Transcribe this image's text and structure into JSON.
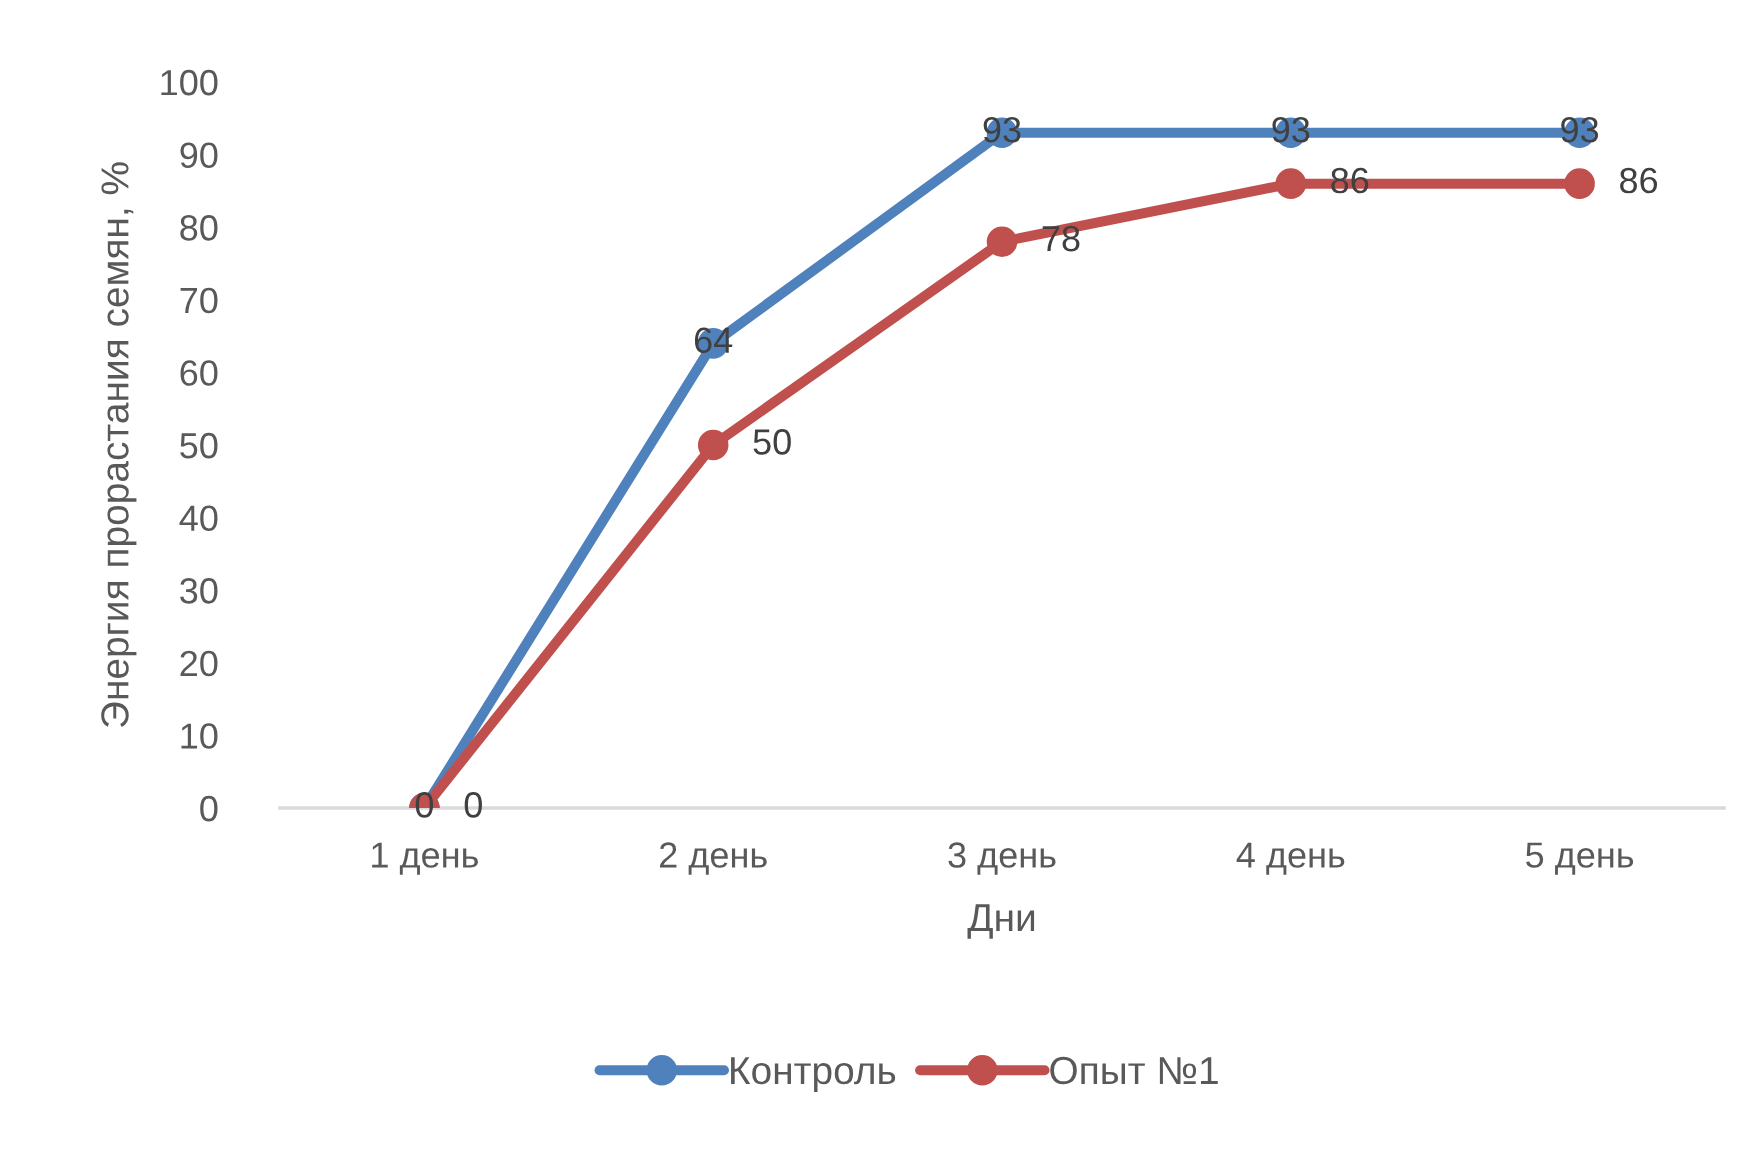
{
  "chart_data": {
    "type": "line",
    "xlabel": "Дни",
    "ylabel": "Энергия прорастания семян, %",
    "categories": [
      "1 день",
      "2 день",
      "3 день",
      "4 день",
      "5 день"
    ],
    "series": [
      {
        "name": "Контроль",
        "color": "#4f81bd",
        "values": [
          0,
          64,
          93,
          93,
          93
        ]
      },
      {
        "name": "Опыт №1",
        "color": "#c0504d",
        "values": [
          0,
          50,
          78,
          86,
          86
        ]
      }
    ],
    "ylim": [
      0,
      100
    ],
    "yticks": [
      0,
      10,
      20,
      30,
      40,
      50,
      60,
      70,
      80,
      90,
      100
    ],
    "grid": false,
    "legend": "bottom",
    "marker": "circle",
    "line_style": "solid",
    "data_labels": true
  }
}
